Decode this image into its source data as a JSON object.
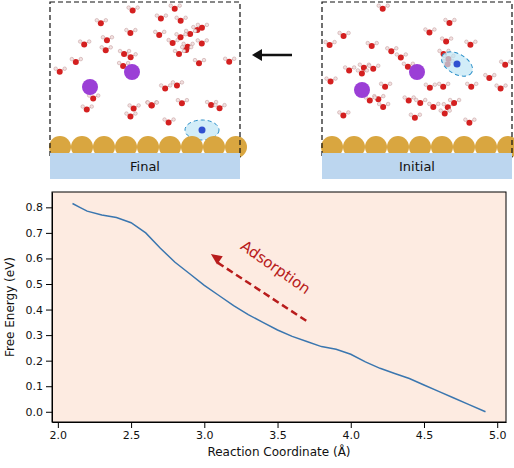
{
  "snapshots": {
    "labels": [
      "Final",
      "Initial"
    ]
  },
  "chart_data": {
    "type": "line",
    "x_label": "Reaction Coordinate (Å)",
    "y_label": "Free Energy (eV)",
    "annotations": [
      "Adsorption"
    ],
    "x": [
      2.1,
      2.15,
      2.2,
      2.3,
      2.4,
      2.5,
      2.6,
      2.7,
      2.8,
      2.9,
      3.0,
      3.1,
      3.2,
      3.3,
      3.4,
      3.5,
      3.6,
      3.7,
      3.8,
      3.9,
      4.0,
      4.1,
      4.2,
      4.3,
      4.4,
      4.5,
      4.6,
      4.7,
      4.8,
      4.92
    ],
    "values": [
      0.815,
      0.8,
      0.785,
      0.77,
      0.76,
      0.74,
      0.7,
      0.64,
      0.585,
      0.54,
      0.495,
      0.455,
      0.415,
      0.38,
      0.35,
      0.32,
      0.295,
      0.275,
      0.255,
      0.245,
      0.225,
      0.195,
      0.17,
      0.15,
      0.13,
      0.105,
      0.08,
      0.055,
      0.03,
      0.0
    ],
    "color": "#3a76af",
    "xlim": [
      1.96,
      5.06
    ],
    "ylim": [
      -0.04,
      0.86
    ],
    "xticks": [
      {
        "value": 2,
        "label": "2.0"
      },
      {
        "value": 2.5,
        "label": "2.5"
      },
      {
        "value": 3,
        "label": "3.0"
      },
      {
        "value": 3.5,
        "label": "3.5"
      },
      {
        "value": 4,
        "label": "4.0"
      },
      {
        "value": 4.5,
        "label": "4.5"
      },
      {
        "value": 5,
        "label": "5.0"
      }
    ],
    "yticks": [
      {
        "value": 0,
        "label": "0.0"
      },
      {
        "value": 0.1,
        "label": "0.1"
      },
      {
        "value": 0.2,
        "label": "0.2"
      },
      {
        "value": 0.3,
        "label": "0.3"
      },
      {
        "value": 0.4,
        "label": "0.4"
      },
      {
        "value": 0.5,
        "label": "0.5"
      },
      {
        "value": 0.6,
        "label": "0.6"
      },
      {
        "value": 0.7,
        "label": "0.7"
      },
      {
        "value": 0.8,
        "label": "0.8"
      }
    ],
    "grid": false
  }
}
